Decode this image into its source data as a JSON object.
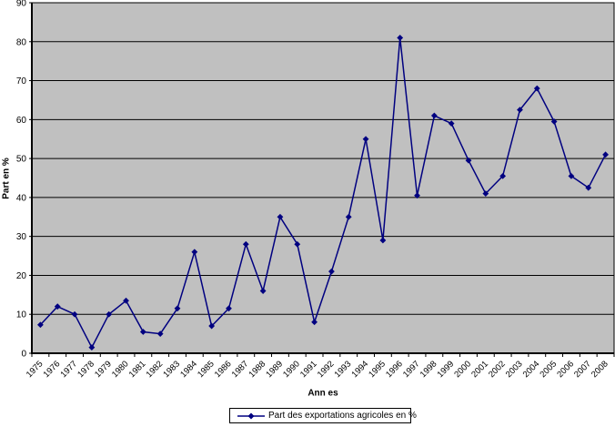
{
  "chart_data": {
    "type": "line",
    "categories": [
      "1975",
      "1976",
      "1977",
      "1978",
      "1979",
      "1980",
      "1981",
      "1982",
      "1983",
      "1984",
      "1985",
      "1986",
      "1987",
      "1988",
      "1989",
      "1990",
      "1991",
      "1992",
      "1993",
      "1994",
      "1995",
      "1996",
      "1997",
      "1998",
      "1999",
      "2000",
      "2001",
      "2002",
      "2003",
      "2004",
      "2005",
      "2006",
      "2007",
      "2008"
    ],
    "series": [
      {
        "name": "Part des exportations agricoles en %",
        "values": [
          7.3,
          12,
          10,
          1.5,
          10,
          13.5,
          5.5,
          5,
          11.5,
          26,
          7,
          11.5,
          28,
          16,
          35,
          28,
          8,
          21,
          35,
          55,
          29,
          81,
          40.5,
          61,
          59,
          49.5,
          41,
          45.5,
          62.5,
          68,
          59.5,
          45.5,
          42.5,
          51
        ]
      }
    ],
    "title": "",
    "xlabel": "Ann es",
    "ylabel": "Part en %",
    "ylim": [
      0,
      90
    ],
    "ytick_step": 10,
    "grid": "horizontal",
    "legend_position": "bottom",
    "marker": "diamond",
    "colors": {
      "line": "#000080",
      "marker": "#000080",
      "plot_bg": "#c0c0c0",
      "gridline": "#000000",
      "axis": "#000000",
      "text": "#000000",
      "legend_bg": "#ffffff",
      "legend_border": "#000000",
      "page_bg": "#ffffff"
    }
  }
}
